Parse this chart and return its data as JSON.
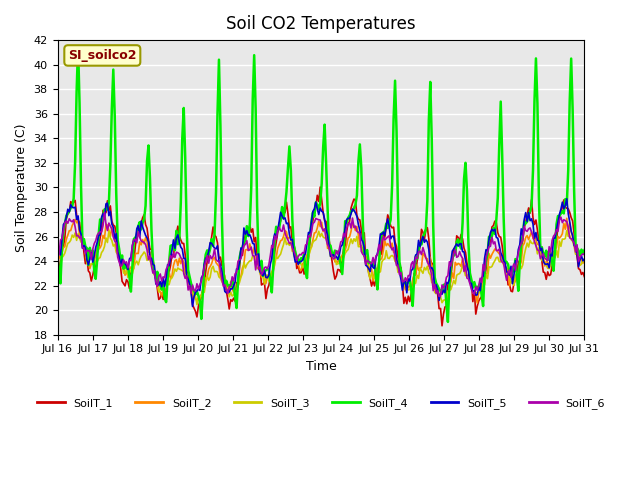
{
  "title": "Soil CO2 Temperatures",
  "xlabel": "Time",
  "ylabel": "Soil Temperature (C)",
  "ylim": [
    18,
    42
  ],
  "yticks": [
    18,
    20,
    22,
    24,
    26,
    28,
    30,
    32,
    34,
    36,
    38,
    40,
    42
  ],
  "annotation_text": "SI_soilco2",
  "annotation_bg": "#ffffcc",
  "annotation_border": "#999900",
  "annotation_text_color": "#880000",
  "bg_color": "#e8e8e8",
  "series_colors": [
    "#cc0000",
    "#ff8800",
    "#cccc00",
    "#00ee00",
    "#0000cc",
    "#aa00aa"
  ],
  "series_names": [
    "SoilT_1",
    "SoilT_2",
    "SoilT_3",
    "SoilT_4",
    "SoilT_5",
    "SoilT_6"
  ],
  "xtick_labels": [
    "Jul 16",
    "Jul 17",
    "Jul 18",
    "Jul 19",
    "Jul 20",
    "Jul 21",
    "Jul 22",
    "Jul 23",
    "Jul 24",
    "Jul 25",
    "Jul 26",
    "Jul 27",
    "Jul 28",
    "Jul 29",
    "Jul 30",
    "Jul 31"
  ],
  "n_days": 15,
  "start_day": 16,
  "points_per_day": 24,
  "seed": 42
}
